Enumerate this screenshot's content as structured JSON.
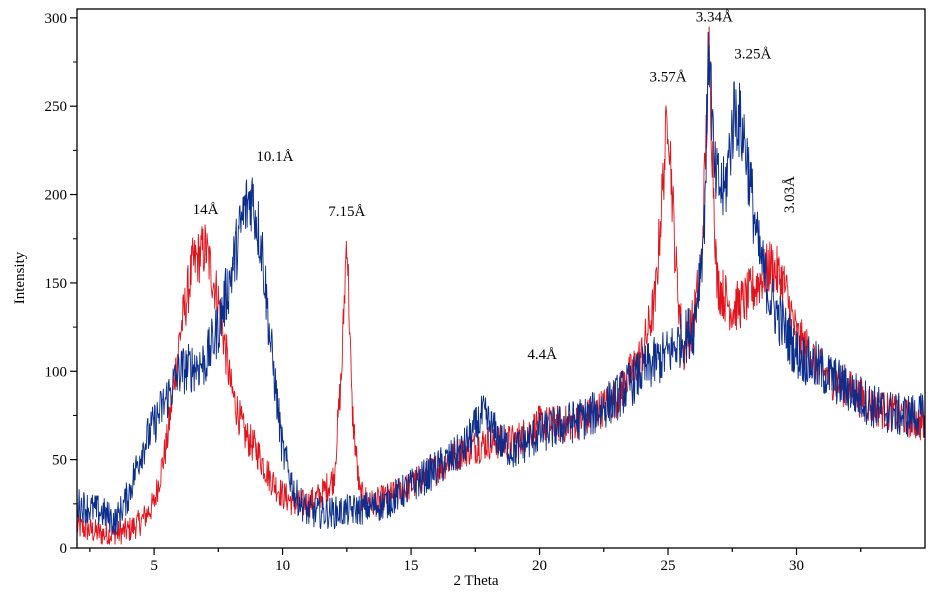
{
  "chart_data": {
    "type": "line",
    "title": "",
    "xlabel": "2 Theta",
    "ylabel": "Intensity",
    "xlim": [
      2,
      35
    ],
    "ylim": [
      0,
      305
    ],
    "xticks": [
      5,
      10,
      15,
      20,
      25,
      30
    ],
    "yticks": [
      0,
      50,
      100,
      150,
      200,
      250,
      300
    ],
    "grid": false,
    "legend": "none",
    "series": [
      {
        "name": "red",
        "color": "#e3121b",
        "noise": 14,
        "x": [
          2,
          3,
          3.5,
          4,
          4.5,
          5,
          5.5,
          6,
          6.5,
          7,
          7.5,
          8,
          8.5,
          9,
          9.5,
          10,
          10.5,
          11,
          11.5,
          12,
          12.3,
          12.5,
          12.7,
          13,
          13.5,
          14,
          15,
          16,
          17,
          18,
          19,
          20,
          21,
          22,
          23,
          24,
          24.5,
          25,
          25.3,
          25.6,
          26,
          26.3,
          26.6,
          26.9,
          27.5,
          28,
          28.5,
          29,
          29.5,
          30,
          31,
          32,
          33,
          34,
          35
        ],
        "y": [
          12,
          8,
          8,
          10,
          15,
          25,
          60,
          120,
          160,
          170,
          140,
          90,
          65,
          55,
          40,
          30,
          25,
          25,
          30,
          40,
          100,
          180,
          80,
          30,
          25,
          28,
          35,
          45,
          55,
          60,
          60,
          70,
          70,
          75,
          85,
          110,
          140,
          250,
          160,
          110,
          130,
          160,
          280,
          150,
          135,
          140,
          150,
          160,
          150,
          120,
          100,
          90,
          80,
          75,
          70
        ]
      },
      {
        "name": "blue",
        "color": "#0b2d8c",
        "noise": 16,
        "x": [
          2,
          3,
          3.5,
          4,
          4.5,
          5,
          5.5,
          6,
          7,
          7.5,
          8,
          8.5,
          8.8,
          9.2,
          9.5,
          10,
          10.5,
          11,
          12,
          13,
          14,
          15,
          16,
          17,
          17.8,
          18.5,
          19,
          20,
          21,
          22,
          23,
          24,
          25,
          26,
          26.4,
          26.6,
          26.8,
          27.2,
          27.6,
          28,
          28.5,
          29,
          30,
          31,
          32,
          33,
          34,
          35
        ],
        "y": [
          25,
          20,
          15,
          30,
          55,
          70,
          85,
          100,
          105,
          125,
          155,
          190,
          200,
          170,
          120,
          55,
          30,
          20,
          20,
          22,
          25,
          35,
          45,
          55,
          75,
          60,
          55,
          65,
          70,
          75,
          85,
          100,
          110,
          125,
          180,
          290,
          210,
          200,
          250,
          230,
          170,
          140,
          110,
          100,
          90,
          80,
          75,
          75
        ]
      }
    ],
    "annotations": [
      {
        "text": "14Å",
        "x": 7.0,
        "y": 189,
        "rotate": false
      },
      {
        "text": "10.1Å",
        "x": 9.7,
        "y": 219,
        "rotate": false
      },
      {
        "text": "7.15Å",
        "x": 12.5,
        "y": 188,
        "rotate": false
      },
      {
        "text": "4.4Å",
        "x": 20.1,
        "y": 107,
        "rotate": false
      },
      {
        "text": "3.57Å",
        "x": 25.0,
        "y": 264,
        "rotate": false
      },
      {
        "text": "3.34Å",
        "x": 26.8,
        "y": 298,
        "rotate": false
      },
      {
        "text": "3.25Å",
        "x": 28.3,
        "y": 277,
        "rotate": false
      },
      {
        "text": "3.03Å",
        "x": 29.9,
        "y": 200,
        "rotate": true
      }
    ]
  }
}
